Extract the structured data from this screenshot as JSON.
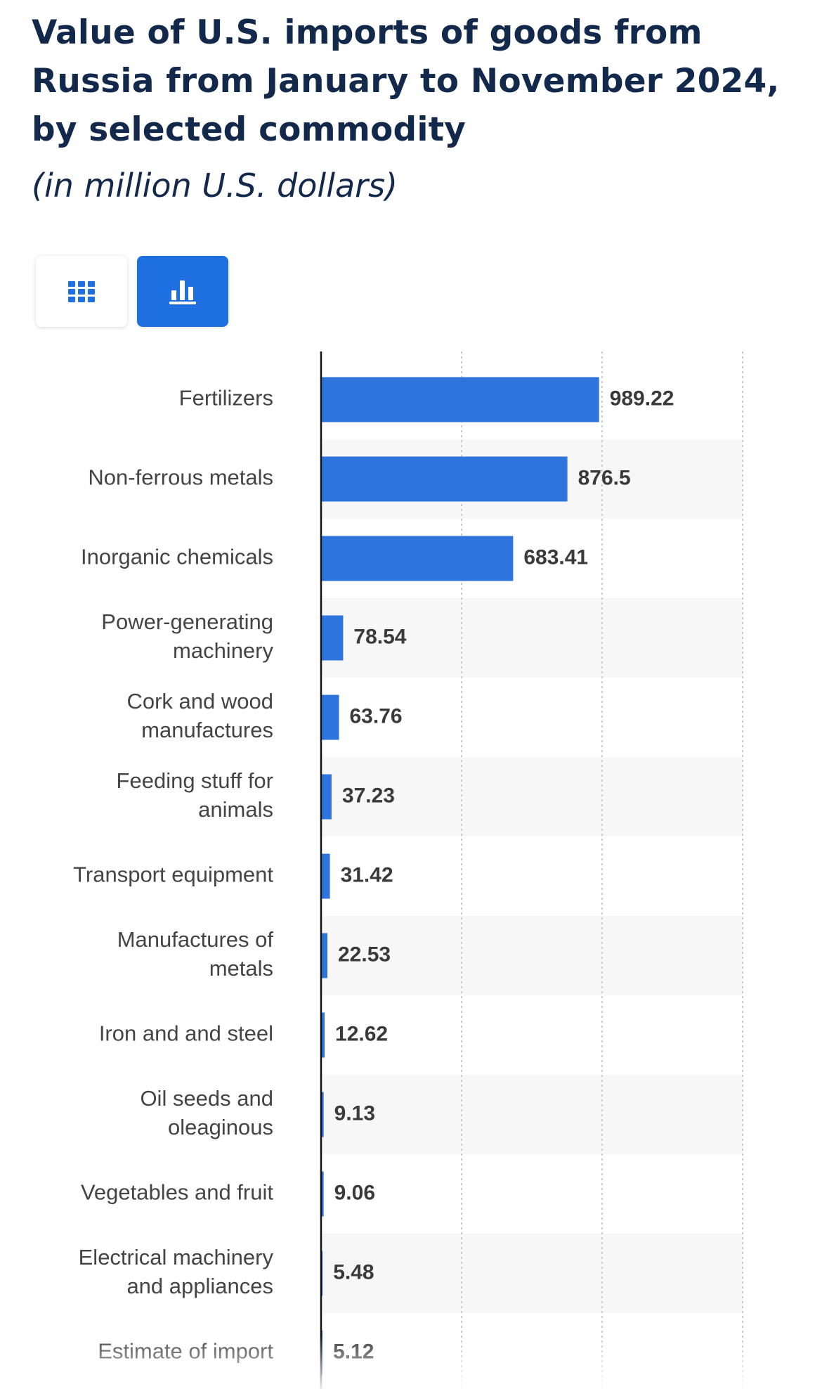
{
  "header": {
    "title": "Value of U.S. imports of goods from Russia from January to November 2024, by selected commodity",
    "subtitle": "(in million U.S. dollars)"
  },
  "view_toggle": {
    "table_icon": "grid-icon",
    "chart_icon": "bar-chart-icon",
    "active": "chart"
  },
  "colors": {
    "bar": "#2e74dc",
    "accent": "#1e6fe0",
    "title": "#13294b",
    "band": "#f7f7f7",
    "grid": "#cccccc",
    "axis": "#111111"
  },
  "chart_data": {
    "type": "bar",
    "orientation": "horizontal",
    "title": "Value of U.S. imports of goods from Russia from January to November 2024, by selected commodity",
    "subtitle": "(in million U.S. dollars)",
    "xlim": [
      0,
      1500
    ],
    "grid": true,
    "categories": [
      [
        "Fertilizers"
      ],
      [
        "Non-ferrous metals"
      ],
      [
        "Inorganic chemicals"
      ],
      [
        "Power-generating",
        "machinery"
      ],
      [
        "Cork and wood",
        "manufactures"
      ],
      [
        "Feeding stuff for",
        "animals"
      ],
      [
        "Transport equipment"
      ],
      [
        "Manufactures of",
        "metals"
      ],
      [
        "Iron and and steel"
      ],
      [
        "Oil seeds and",
        "oleaginous"
      ],
      [
        "Vegetables and fruit"
      ],
      [
        "Electrical machinery",
        "and appliances"
      ],
      [
        "Estimate of import"
      ]
    ],
    "values": [
      989.22,
      876.5,
      683.41,
      78.54,
      63.76,
      37.23,
      31.42,
      22.53,
      12.62,
      9.13,
      9.06,
      5.48,
      5.12
    ],
    "value_labels": [
      "989.22",
      "876.5",
      "683.41",
      "78.54",
      "63.76",
      "37.23",
      "31.42",
      "22.53",
      "12.62",
      "9.13",
      "9.06",
      "5.48",
      "5.12"
    ]
  }
}
